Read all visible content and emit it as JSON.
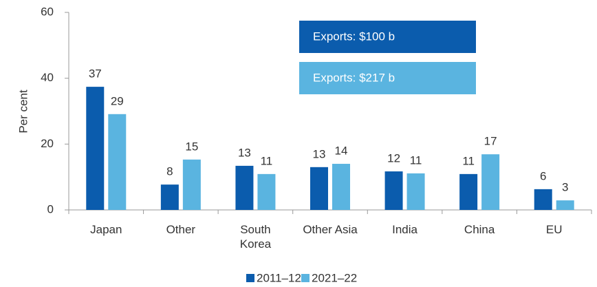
{
  "chart_data": {
    "type": "bar",
    "y_label": "Per cent",
    "categories": [
      "Japan",
      "Other",
      "South Korea",
      "Other Asia",
      "India",
      "China",
      "EU"
    ],
    "series": [
      {
        "name": "2011–12",
        "color": "#0b5cad",
        "values": [
          37.4,
          7.7,
          13.4,
          13,
          11.7,
          10.9,
          6.3
        ],
        "value_labels": [
          "37",
          "8",
          "13",
          "13",
          "12",
          "11",
          "6"
        ]
      },
      {
        "name": "2021–22",
        "color": "#5ab4e0",
        "values": [
          29.1,
          15.3,
          10.9,
          14,
          11.1,
          16.9,
          2.9
        ],
        "value_labels": [
          "29",
          "15",
          "11",
          "14",
          "11",
          "17",
          "3"
        ]
      }
    ],
    "annotations": [
      "Exports: $100 b",
      "Exports: $217 b"
    ],
    "ylim": [
      0,
      60
    ],
    "yticks": [
      0,
      20,
      40,
      60
    ]
  }
}
